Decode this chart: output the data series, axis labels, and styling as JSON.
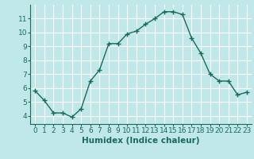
{
  "x": [
    0,
    1,
    2,
    3,
    4,
    5,
    6,
    7,
    8,
    9,
    10,
    11,
    12,
    13,
    14,
    15,
    16,
    17,
    18,
    19,
    20,
    21,
    22,
    23
  ],
  "y": [
    5.8,
    5.1,
    4.2,
    4.2,
    3.9,
    4.5,
    6.5,
    7.3,
    9.2,
    9.2,
    9.9,
    10.1,
    10.6,
    11.0,
    11.5,
    11.5,
    11.3,
    9.6,
    8.5,
    7.0,
    6.5,
    6.5,
    5.5,
    5.7
  ],
  "line_color": "#1a6b5a",
  "marker": "+",
  "bg_color": "#c0e8e8",
  "grid_color": "#ffffff",
  "xlabel": "Humidex (Indice chaleur)",
  "xlim": [
    -0.5,
    23.5
  ],
  "ylim": [
    3.4,
    12.0
  ],
  "yticks": [
    4,
    5,
    6,
    7,
    8,
    9,
    10,
    11
  ],
  "xticks": [
    0,
    1,
    2,
    3,
    4,
    5,
    6,
    7,
    8,
    9,
    10,
    11,
    12,
    13,
    14,
    15,
    16,
    17,
    18,
    19,
    20,
    21,
    22,
    23
  ],
  "xlabel_fontsize": 7.5,
  "tick_fontsize": 6.5,
  "line_width": 1.0,
  "marker_size": 4
}
